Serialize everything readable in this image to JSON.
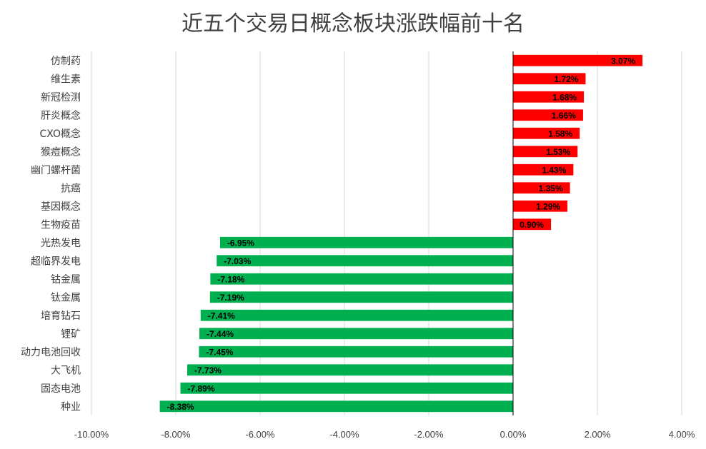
{
  "chart_data": {
    "type": "bar",
    "orientation": "horizontal",
    "title": "近五个交易日概念板块涨跌幅前十名",
    "xlabel": "",
    "ylabel": "",
    "xlim": [
      -10,
      4
    ],
    "x_ticks": [
      "-10.00%",
      "-8.00%",
      "-6.00%",
      "-4.00%",
      "-2.00%",
      "0.00%",
      "2.00%",
      "4.00%"
    ],
    "x_tick_values": [
      -10,
      -8,
      -6,
      -4,
      -2,
      0,
      2,
      4
    ],
    "grid": true,
    "legend": "none",
    "positive_color": "#FF0000",
    "negative_color": "#00B050",
    "categories": [
      "仿制药",
      "维生素",
      "新冠检测",
      "肝炎概念",
      "CXO概念",
      "猴痘概念",
      "幽门螺杆菌",
      "抗癌",
      "基因概念",
      "生物疫苗",
      "光热发电",
      "超临界发电",
      "钴金属",
      "钛金属",
      "培育钻石",
      "锂矿",
      "动力电池回收",
      "大飞机",
      "固态电池",
      "种业"
    ],
    "values": [
      3.07,
      1.72,
      1.68,
      1.66,
      1.58,
      1.53,
      1.43,
      1.35,
      1.29,
      0.9,
      -6.95,
      -7.03,
      -7.18,
      -7.19,
      -7.41,
      -7.44,
      -7.45,
      -7.73,
      -7.89,
      -8.38
    ],
    "value_labels": [
      "3.07%",
      "1.72%",
      "1.68%",
      "1.66%",
      "1.58%",
      "1.53%",
      "1.43%",
      "1.35%",
      "1.29%",
      "0.90%",
      "-6.95%",
      "-7.03%",
      "-7.18%",
      "-7.19%",
      "-7.41%",
      "-7.44%",
      "-7.45%",
      "-7.73%",
      "-7.89%",
      "-8.38%"
    ]
  }
}
